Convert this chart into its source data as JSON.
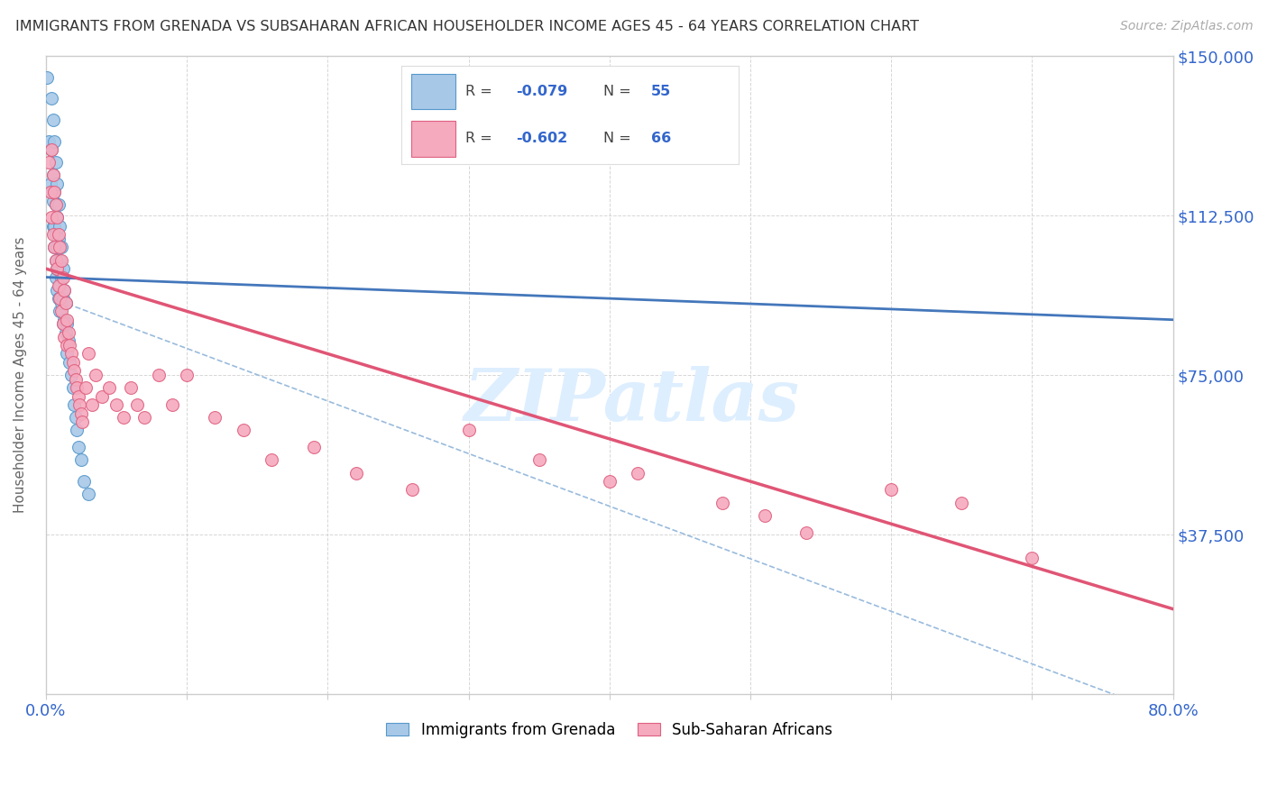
{
  "title": "IMMIGRANTS FROM GRENADA VS SUBSAHARAN AFRICAN HOUSEHOLDER INCOME AGES 45 - 64 YEARS CORRELATION CHART",
  "source": "Source: ZipAtlas.com",
  "ylabel": "Householder Income Ages 45 - 64 years",
  "xlim": [
    0.0,
    0.8
  ],
  "ylim": [
    0,
    150000
  ],
  "yticks": [
    0,
    37500,
    75000,
    112500,
    150000
  ],
  "ytick_labels_right": [
    "",
    "$37,500",
    "$75,000",
    "$112,500",
    "$150,000"
  ],
  "xticks": [
    0.0,
    0.1,
    0.2,
    0.3,
    0.4,
    0.5,
    0.6,
    0.7,
    0.8
  ],
  "grenada_color": "#a8c8e8",
  "grenada_edge": "#5599cc",
  "subsaharan_color": "#f5aabe",
  "subsaharan_edge": "#e06080",
  "trend_grenada_color": "#4477bb",
  "trend_subsaharan_color": "#e05575",
  "trend_grenada_dash_color": "#99bbdd",
  "watermark": "ZIPatlas",
  "watermark_color": "#ddeeff",
  "background_color": "#ffffff",
  "grid_color": "#cccccc",
  "title_color": "#333333",
  "axis_color": "#cccccc",
  "label_color": "#666666",
  "blue_color": "#3366cc",
  "legend_r1_val": "-0.079",
  "legend_n1_val": "55",
  "legend_r2_val": "-0.602",
  "legend_n2_val": "66",
  "grenada_x": [
    0.001,
    0.002,
    0.003,
    0.004,
    0.004,
    0.004,
    0.005,
    0.005,
    0.005,
    0.005,
    0.006,
    0.006,
    0.006,
    0.006,
    0.007,
    0.007,
    0.007,
    0.007,
    0.007,
    0.008,
    0.008,
    0.008,
    0.008,
    0.008,
    0.009,
    0.009,
    0.009,
    0.009,
    0.01,
    0.01,
    0.01,
    0.01,
    0.011,
    0.011,
    0.011,
    0.012,
    0.012,
    0.012,
    0.013,
    0.013,
    0.014,
    0.014,
    0.015,
    0.015,
    0.016,
    0.017,
    0.018,
    0.019,
    0.02,
    0.021,
    0.022,
    0.023,
    0.025,
    0.027,
    0.03
  ],
  "grenada_y": [
    145000,
    130000,
    120000,
    140000,
    128000,
    118000,
    135000,
    122000,
    116000,
    110000,
    130000,
    118000,
    110000,
    105000,
    125000,
    115000,
    108000,
    102000,
    98000,
    120000,
    112000,
    105000,
    100000,
    95000,
    115000,
    107000,
    100000,
    93000,
    110000,
    102000,
    96000,
    90000,
    105000,
    98000,
    92000,
    100000,
    93000,
    87000,
    95000,
    88000,
    92000,
    85000,
    87000,
    80000,
    83000,
    78000,
    75000,
    72000,
    68000,
    65000,
    62000,
    58000,
    55000,
    50000,
    47000
  ],
  "subsaharan_x": [
    0.002,
    0.003,
    0.004,
    0.004,
    0.005,
    0.005,
    0.006,
    0.006,
    0.007,
    0.007,
    0.008,
    0.008,
    0.009,
    0.009,
    0.01,
    0.01,
    0.011,
    0.011,
    0.012,
    0.012,
    0.013,
    0.013,
    0.014,
    0.015,
    0.015,
    0.016,
    0.017,
    0.018,
    0.019,
    0.02,
    0.021,
    0.022,
    0.023,
    0.024,
    0.025,
    0.026,
    0.028,
    0.03,
    0.033,
    0.035,
    0.04,
    0.045,
    0.05,
    0.055,
    0.06,
    0.065,
    0.07,
    0.08,
    0.09,
    0.1,
    0.12,
    0.14,
    0.16,
    0.19,
    0.22,
    0.26,
    0.3,
    0.35,
    0.4,
    0.42,
    0.48,
    0.51,
    0.54,
    0.6,
    0.65,
    0.7
  ],
  "subsaharan_y": [
    125000,
    118000,
    128000,
    112000,
    122000,
    108000,
    118000,
    105000,
    115000,
    102000,
    112000,
    100000,
    108000,
    96000,
    105000,
    93000,
    102000,
    90000,
    98000,
    87000,
    95000,
    84000,
    92000,
    88000,
    82000,
    85000,
    82000,
    80000,
    78000,
    76000,
    74000,
    72000,
    70000,
    68000,
    66000,
    64000,
    72000,
    80000,
    68000,
    75000,
    70000,
    72000,
    68000,
    65000,
    72000,
    68000,
    65000,
    75000,
    68000,
    75000,
    65000,
    62000,
    55000,
    58000,
    52000,
    48000,
    62000,
    55000,
    50000,
    52000,
    45000,
    42000,
    38000,
    48000,
    45000,
    32000
  ],
  "trend_grenada_x0": 0.0,
  "trend_grenada_x1": 0.8,
  "trend_grenada_y0": 98000,
  "trend_grenada_y1": 88000,
  "trend_subsaharan_x0": 0.0,
  "trend_subsaharan_x1": 0.8,
  "trend_subsaharan_y0": 100000,
  "trend_subsaharan_y1": 20000
}
